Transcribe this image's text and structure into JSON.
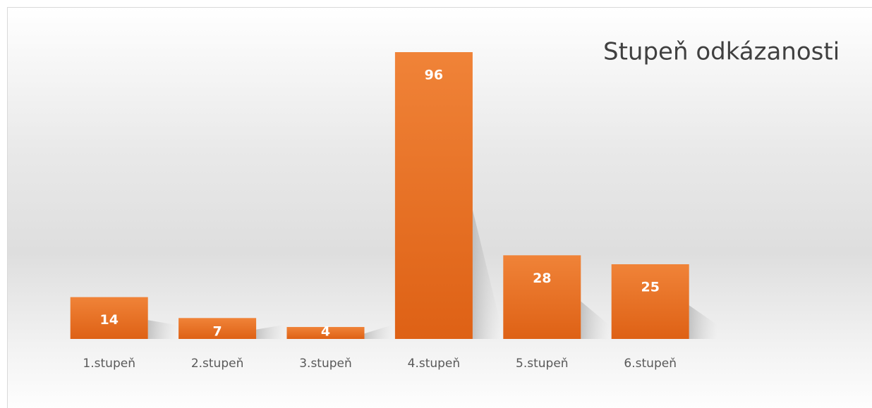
{
  "chart_data": {
    "type": "bar",
    "title": "Stupeň odkázanosti",
    "categories": [
      "1.stupeň",
      "2.stupeň",
      "3.stupeň",
      "4.stupeň",
      "5.stupeň",
      "6.stupeň"
    ],
    "values": [
      14,
      7,
      4,
      96,
      28,
      25
    ],
    "color": "#ed7d31"
  }
}
